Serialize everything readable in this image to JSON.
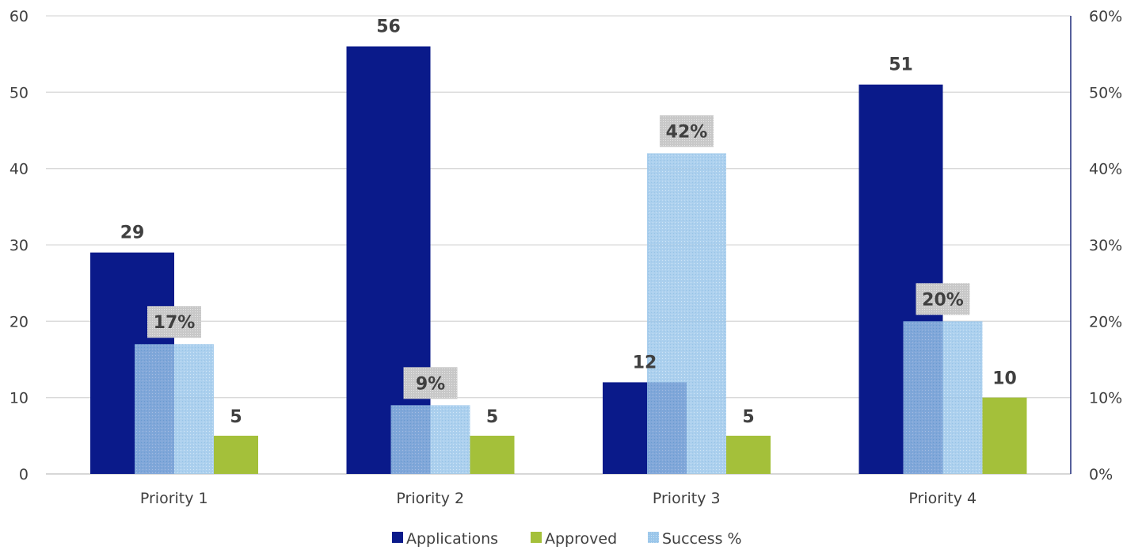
{
  "chart_data": {
    "type": "bar",
    "categories": [
      "Priority 1",
      "Priority 2",
      "Priority 3",
      "Priority 4"
    ],
    "series": [
      {
        "name": "Applications",
        "axis": "left",
        "values": [
          29,
          56,
          12,
          51
        ],
        "labels": [
          "29",
          "56",
          "12",
          "51"
        ],
        "color": "#0a1a8a"
      },
      {
        "name": "Approved",
        "axis": "left",
        "values": [
          5,
          5,
          5,
          10
        ],
        "labels": [
          "5",
          "5",
          "5",
          "10"
        ],
        "color": "#a4c03a"
      },
      {
        "name": "Success %",
        "axis": "right",
        "values": [
          0.17,
          0.09,
          0.42,
          0.2
        ],
        "labels": [
          "17%",
          "9%",
          "42%",
          "20%"
        ],
        "color": "#9ac6ea"
      }
    ],
    "y_left": {
      "min": 0,
      "max": 60,
      "ticks": [
        "0",
        "10",
        "20",
        "30",
        "40",
        "50",
        "60"
      ]
    },
    "y_right": {
      "min": 0,
      "max": 0.6,
      "ticks": [
        "0%",
        "10%",
        "20%",
        "30%",
        "40%",
        "50%",
        "60%"
      ]
    },
    "grid": true,
    "legend": "bottom-center",
    "title": "",
    "xlabel": "",
    "ylabel": ""
  }
}
